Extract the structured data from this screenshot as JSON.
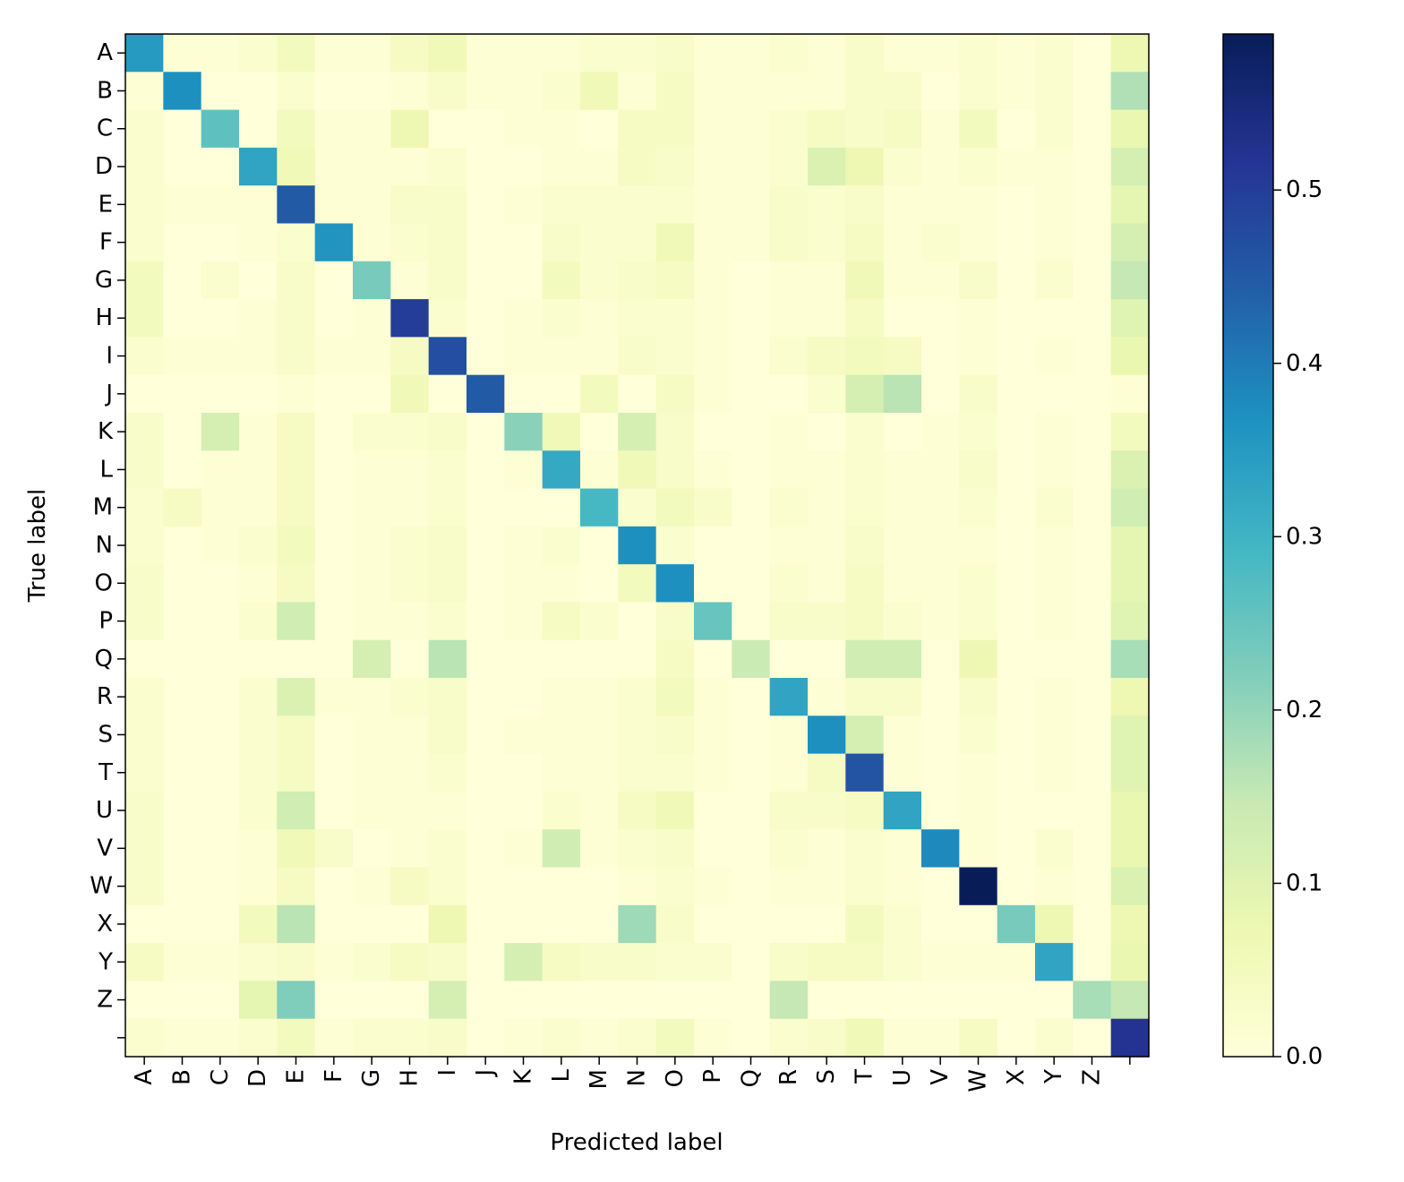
{
  "chart_data": {
    "type": "heatmap",
    "title": "",
    "xlabel": "Predicted label",
    "ylabel": "True label",
    "x_categories": [
      "A",
      "B",
      "C",
      "D",
      "E",
      "F",
      "G",
      "H",
      "I",
      "J",
      "K",
      "L",
      "M",
      "N",
      "O",
      "P",
      "Q",
      "R",
      "S",
      "T",
      "U",
      "V",
      "W",
      "X",
      "Y",
      "Z",
      ""
    ],
    "y_categories": [
      "A",
      "B",
      "C",
      "D",
      "E",
      "F",
      "G",
      "H",
      "I",
      "J",
      "K",
      "L",
      "M",
      "N",
      "O",
      "P",
      "Q",
      "R",
      "S",
      "T",
      "U",
      "V",
      "W",
      "X",
      "Y",
      "Z",
      ""
    ],
    "colormap": "YlGnBu",
    "color_stops": [
      "#ffffd9",
      "#edf8b1",
      "#c7e9b4",
      "#7fcdbb",
      "#41b6c4",
      "#1d91c0",
      "#225ea8",
      "#253494",
      "#081d58"
    ],
    "colorbar": {
      "range": [
        0.0,
        0.59
      ],
      "ticks": [
        0.0,
        0.1,
        0.2,
        0.3,
        0.4,
        0.5
      ],
      "tick_labels": [
        "0.0",
        "0.1",
        "0.2",
        "0.3",
        "0.4",
        "0.5"
      ]
    },
    "matrix": [
      [
        0.35,
        0.01,
        0.01,
        0.02,
        0.05,
        0.01,
        0.01,
        0.04,
        0.06,
        0.01,
        0.01,
        0.01,
        0.02,
        0.02,
        0.03,
        0.01,
        0.01,
        0.02,
        0.01,
        0.03,
        0.01,
        0.01,
        0.02,
        0.01,
        0.02,
        0.0,
        0.07
      ],
      [
        0.01,
        0.37,
        0.0,
        0.0,
        0.02,
        0.0,
        0.0,
        0.01,
        0.03,
        0.01,
        0.01,
        0.02,
        0.06,
        0.01,
        0.04,
        0.01,
        0.01,
        0.01,
        0.01,
        0.03,
        0.03,
        0.0,
        0.02,
        0.01,
        0.02,
        0.0,
        0.17
      ],
      [
        0.02,
        0.0,
        0.26,
        0.0,
        0.05,
        0.01,
        0.01,
        0.07,
        0.0,
        0.0,
        0.01,
        0.01,
        0.0,
        0.04,
        0.04,
        0.01,
        0.01,
        0.02,
        0.04,
        0.03,
        0.04,
        0.01,
        0.05,
        0.0,
        0.02,
        0.0,
        0.08
      ],
      [
        0.02,
        0.0,
        0.0,
        0.33,
        0.06,
        0.01,
        0.01,
        0.01,
        0.02,
        0.0,
        0.0,
        0.01,
        0.01,
        0.04,
        0.03,
        0.01,
        0.01,
        0.02,
        0.11,
        0.07,
        0.02,
        0.01,
        0.02,
        0.01,
        0.01,
        0.0,
        0.12
      ],
      [
        0.02,
        0.01,
        0.01,
        0.01,
        0.45,
        0.01,
        0.01,
        0.03,
        0.03,
        0.0,
        0.01,
        0.02,
        0.02,
        0.02,
        0.02,
        0.01,
        0.01,
        0.03,
        0.02,
        0.03,
        0.01,
        0.01,
        0.01,
        0.0,
        0.01,
        0.0,
        0.09
      ],
      [
        0.02,
        0.0,
        0.0,
        0.01,
        0.02,
        0.36,
        0.01,
        0.02,
        0.03,
        0.0,
        0.0,
        0.03,
        0.02,
        0.02,
        0.06,
        0.01,
        0.01,
        0.03,
        0.02,
        0.04,
        0.01,
        0.02,
        0.01,
        0.0,
        0.01,
        0.0,
        0.12
      ],
      [
        0.05,
        0.0,
        0.02,
        0.0,
        0.03,
        0.0,
        0.23,
        0.01,
        0.03,
        0.0,
        0.0,
        0.05,
        0.02,
        0.03,
        0.04,
        0.01,
        0.0,
        0.01,
        0.01,
        0.06,
        0.01,
        0.01,
        0.03,
        0.0,
        0.02,
        0.0,
        0.15
      ],
      [
        0.05,
        0.0,
        0.0,
        0.01,
        0.03,
        0.0,
        0.01,
        0.5,
        0.02,
        0.0,
        0.01,
        0.02,
        0.01,
        0.02,
        0.02,
        0.01,
        0.0,
        0.01,
        0.01,
        0.04,
        0.0,
        0.0,
        0.01,
        0.0,
        0.0,
        0.0,
        0.1
      ],
      [
        0.02,
        0.01,
        0.01,
        0.01,
        0.03,
        0.01,
        0.01,
        0.04,
        0.47,
        0.0,
        0.01,
        0.01,
        0.01,
        0.03,
        0.02,
        0.01,
        0.0,
        0.02,
        0.04,
        0.05,
        0.04,
        0.0,
        0.01,
        0.0,
        0.01,
        0.0,
        0.08
      ],
      [
        0.0,
        0.0,
        0.0,
        0.0,
        0.01,
        0.0,
        0.0,
        0.06,
        0.0,
        0.45,
        0.0,
        0.0,
        0.05,
        0.0,
        0.04,
        0.01,
        0.0,
        0.0,
        0.02,
        0.12,
        0.16,
        0.0,
        0.03,
        0.0,
        0.0,
        0.0,
        0.01
      ],
      [
        0.03,
        0.0,
        0.12,
        0.01,
        0.04,
        0.0,
        0.02,
        0.02,
        0.03,
        0.0,
        0.21,
        0.06,
        0.0,
        0.12,
        0.03,
        0.0,
        0.0,
        0.01,
        0.0,
        0.02,
        0.0,
        0.01,
        0.02,
        0.0,
        0.01,
        0.0,
        0.05
      ],
      [
        0.03,
        0.0,
        0.01,
        0.01,
        0.04,
        0.0,
        0.01,
        0.01,
        0.02,
        0.0,
        0.01,
        0.32,
        0.01,
        0.06,
        0.03,
        0.01,
        0.0,
        0.01,
        0.01,
        0.02,
        0.01,
        0.01,
        0.03,
        0.0,
        0.01,
        0.0,
        0.11
      ],
      [
        0.02,
        0.04,
        0.01,
        0.01,
        0.04,
        0.0,
        0.01,
        0.01,
        0.02,
        0.0,
        0.0,
        0.0,
        0.29,
        0.02,
        0.05,
        0.03,
        0.0,
        0.02,
        0.01,
        0.02,
        0.01,
        0.01,
        0.02,
        0.0,
        0.02,
        0.0,
        0.13
      ],
      [
        0.02,
        0.0,
        0.01,
        0.02,
        0.05,
        0.0,
        0.01,
        0.02,
        0.03,
        0.0,
        0.01,
        0.02,
        0.0,
        0.37,
        0.02,
        0.0,
        0.0,
        0.01,
        0.01,
        0.03,
        0.01,
        0.01,
        0.01,
        0.0,
        0.01,
        0.0,
        0.09
      ],
      [
        0.03,
        0.0,
        0.0,
        0.01,
        0.04,
        0.0,
        0.01,
        0.02,
        0.03,
        0.0,
        0.01,
        0.01,
        0.0,
        0.05,
        0.37,
        0.0,
        0.0,
        0.02,
        0.01,
        0.04,
        0.01,
        0.01,
        0.02,
        0.0,
        0.01,
        0.0,
        0.09
      ],
      [
        0.03,
        0.0,
        0.0,
        0.02,
        0.13,
        0.0,
        0.01,
        0.01,
        0.02,
        0.0,
        0.01,
        0.04,
        0.02,
        0.0,
        0.03,
        0.25,
        0.0,
        0.03,
        0.03,
        0.04,
        0.02,
        0.01,
        0.02,
        0.0,
        0.01,
        0.0,
        0.1
      ],
      [
        0.0,
        0.0,
        0.0,
        0.0,
        0.0,
        0.0,
        0.12,
        0.0,
        0.16,
        0.0,
        0.0,
        0.0,
        0.0,
        0.0,
        0.04,
        0.0,
        0.14,
        0.0,
        0.0,
        0.13,
        0.13,
        0.0,
        0.07,
        0.0,
        0.0,
        0.0,
        0.18
      ],
      [
        0.02,
        0.0,
        0.0,
        0.02,
        0.11,
        0.01,
        0.01,
        0.02,
        0.03,
        0.0,
        0.0,
        0.01,
        0.01,
        0.02,
        0.05,
        0.01,
        0.0,
        0.33,
        0.01,
        0.03,
        0.03,
        0.0,
        0.03,
        0.0,
        0.01,
        0.0,
        0.07
      ],
      [
        0.02,
        0.0,
        0.0,
        0.02,
        0.04,
        0.0,
        0.01,
        0.01,
        0.03,
        0.0,
        0.01,
        0.01,
        0.01,
        0.02,
        0.03,
        0.01,
        0.0,
        0.01,
        0.37,
        0.12,
        0.01,
        0.0,
        0.02,
        0.0,
        0.01,
        0.0,
        0.1
      ],
      [
        0.02,
        0.0,
        0.0,
        0.02,
        0.04,
        0.0,
        0.01,
        0.01,
        0.02,
        0.0,
        0.0,
        0.01,
        0.01,
        0.02,
        0.02,
        0.01,
        0.0,
        0.01,
        0.04,
        0.46,
        0.01,
        0.0,
        0.01,
        0.0,
        0.01,
        0.0,
        0.1
      ],
      [
        0.03,
        0.0,
        0.0,
        0.02,
        0.13,
        0.0,
        0.01,
        0.01,
        0.01,
        0.0,
        0.0,
        0.02,
        0.01,
        0.04,
        0.06,
        0.0,
        0.0,
        0.03,
        0.03,
        0.04,
        0.33,
        0.0,
        0.01,
        0.0,
        0.0,
        0.0,
        0.08
      ],
      [
        0.03,
        0.0,
        0.0,
        0.01,
        0.06,
        0.03,
        0.0,
        0.01,
        0.02,
        0.0,
        0.01,
        0.13,
        0.01,
        0.02,
        0.03,
        0.0,
        0.0,
        0.02,
        0.01,
        0.02,
        0.01,
        0.38,
        0.01,
        0.0,
        0.02,
        0.0,
        0.08
      ],
      [
        0.03,
        0.0,
        0.0,
        0.01,
        0.04,
        0.0,
        0.01,
        0.04,
        0.02,
        0.0,
        0.0,
        0.0,
        0.0,
        0.01,
        0.02,
        0.01,
        0.0,
        0.01,
        0.01,
        0.02,
        0.01,
        0.0,
        0.59,
        0.0,
        0.01,
        0.0,
        0.11
      ],
      [
        0.0,
        0.0,
        0.0,
        0.05,
        0.16,
        0.0,
        0.0,
        0.0,
        0.07,
        0.0,
        0.0,
        0.0,
        0.0,
        0.19,
        0.03,
        0.0,
        0.0,
        0.0,
        0.0,
        0.05,
        0.02,
        0.0,
        0.0,
        0.23,
        0.07,
        0.0,
        0.07
      ],
      [
        0.04,
        0.01,
        0.01,
        0.02,
        0.03,
        0.01,
        0.02,
        0.04,
        0.03,
        0.0,
        0.12,
        0.04,
        0.03,
        0.03,
        0.02,
        0.02,
        0.0,
        0.03,
        0.04,
        0.04,
        0.02,
        0.01,
        0.01,
        0.01,
        0.33,
        0.0,
        0.08
      ],
      [
        0.0,
        0.0,
        0.0,
        0.09,
        0.22,
        0.0,
        0.0,
        0.0,
        0.12,
        0.0,
        0.0,
        0.0,
        0.0,
        0.0,
        0.0,
        0.0,
        0.0,
        0.15,
        0.0,
        0.0,
        0.0,
        0.0,
        0.0,
        0.0,
        0.0,
        0.18,
        0.15
      ],
      [
        0.02,
        0.01,
        0.01,
        0.02,
        0.05,
        0.01,
        0.02,
        0.02,
        0.03,
        0.0,
        0.01,
        0.02,
        0.01,
        0.02,
        0.05,
        0.01,
        0.0,
        0.02,
        0.03,
        0.06,
        0.01,
        0.01,
        0.04,
        0.0,
        0.02,
        0.0,
        0.52
      ]
    ]
  }
}
